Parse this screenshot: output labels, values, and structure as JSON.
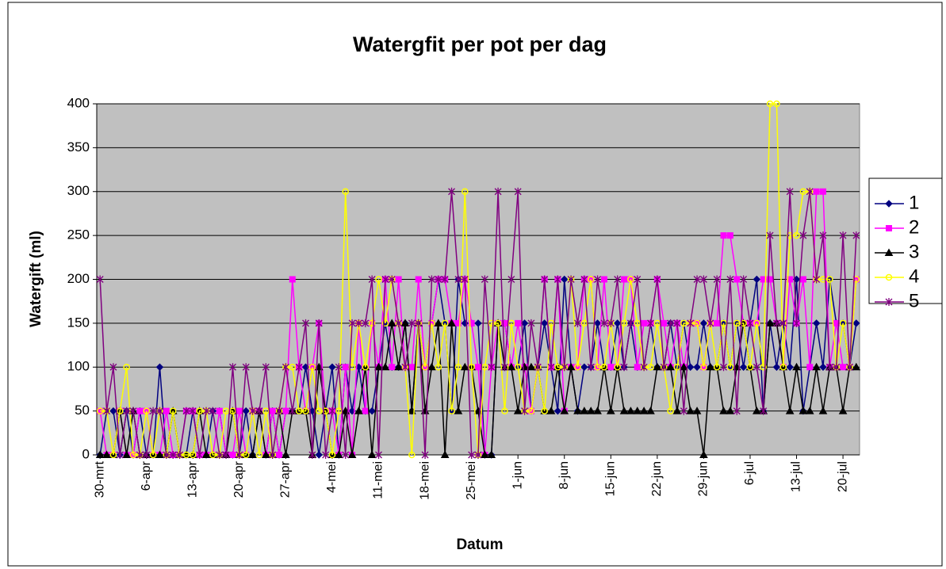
{
  "chart_data": {
    "type": "line",
    "title": "Watergfit per pot per dag",
    "x_label": "Datum",
    "y_label": "Watergift (ml)",
    "categories": [
      "30-mrt",
      null,
      null,
      null,
      null,
      null,
      null,
      "6-apr",
      null,
      null,
      null,
      null,
      null,
      null,
      "13-apr",
      null,
      null,
      null,
      null,
      null,
      null,
      "20-apr",
      null,
      null,
      null,
      null,
      null,
      null,
      "27-apr",
      null,
      null,
      null,
      null,
      null,
      null,
      "4-mei",
      null,
      null,
      null,
      null,
      null,
      null,
      "11-mei",
      null,
      null,
      null,
      null,
      null,
      null,
      "18-mei",
      null,
      null,
      null,
      null,
      null,
      null,
      "25-mei",
      null,
      null,
      null,
      null,
      null,
      null,
      "1-jun",
      null,
      null,
      null,
      null,
      null,
      null,
      "8-jun",
      null,
      null,
      null,
      null,
      null,
      null,
      "15-jun",
      null,
      null,
      null,
      null,
      null,
      null,
      "22-jun",
      null,
      null,
      null,
      null,
      null,
      null,
      "29-jun",
      null,
      null,
      null,
      null,
      null,
      null,
      "6-jul",
      null,
      null,
      null,
      null,
      null,
      null,
      "13-jul",
      null,
      null,
      null,
      null,
      null,
      null,
      "20-jul",
      null,
      null
    ],
    "ylim": [
      0,
      400
    ],
    "yticks": [
      0,
      50,
      100,
      150,
      200,
      250,
      300,
      350,
      400
    ],
    "grid": true,
    "legend": "right",
    "series": [
      {
        "name": "1",
        "color": "#000080",
        "marker": "diamond",
        "values": [
          0,
          50,
          50,
          0,
          50,
          0,
          50,
          0,
          0,
          100,
          0,
          50,
          0,
          0,
          50,
          0,
          0,
          50,
          50,
          0,
          0,
          0,
          50,
          0,
          50,
          0,
          50,
          0,
          50,
          50,
          50,
          100,
          50,
          0,
          50,
          100,
          0,
          100,
          50,
          100,
          50,
          50,
          100,
          150,
          100,
          100,
          150,
          50,
          150,
          100,
          150,
          200,
          150,
          50,
          200,
          150,
          150,
          150,
          0,
          0,
          150,
          150,
          100,
          100,
          150,
          50,
          100,
          150,
          100,
          50,
          200,
          100,
          50,
          100,
          100,
          150,
          100,
          100,
          150,
          100,
          150,
          100,
          100,
          150,
          100,
          100,
          150,
          100,
          150,
          100,
          100,
          150,
          100,
          100,
          150,
          100,
          150,
          100,
          150,
          200,
          50,
          150,
          100,
          150,
          100,
          200,
          50,
          100,
          150,
          100,
          200,
          150,
          150,
          100,
          150
        ]
      },
      {
        "name": "2",
        "color": "#ff00ff",
        "marker": "square",
        "values": [
          50,
          0,
          0,
          50,
          0,
          0,
          50,
          50,
          0,
          0,
          50,
          0,
          0,
          50,
          50,
          0,
          0,
          0,
          50,
          0,
          0,
          50,
          0,
          50,
          50,
          0,
          50,
          0,
          50,
          200,
          100,
          50,
          100,
          150,
          50,
          50,
          0,
          100,
          0,
          150,
          50,
          150,
          100,
          200,
          100,
          200,
          100,
          100,
          200,
          100,
          150,
          200,
          200,
          150,
          150,
          200,
          150,
          100,
          0,
          100,
          150,
          150,
          100,
          150,
          100,
          50,
          100,
          200,
          100,
          200,
          50,
          100,
          100,
          200,
          200,
          100,
          200,
          100,
          100,
          200,
          200,
          100,
          150,
          150,
          200,
          150,
          100,
          150,
          100,
          150,
          150,
          100,
          150,
          150,
          250,
          250,
          200,
          150,
          150,
          150,
          200,
          200,
          150,
          100,
          200,
          150,
          200,
          100,
          300,
          300,
          100,
          150,
          100,
          100,
          200
        ]
      },
      {
        "name": "3",
        "color": "#000000",
        "marker": "triangle",
        "values": [
          0,
          0,
          0,
          50,
          0,
          50,
          0,
          0,
          0,
          0,
          0,
          50,
          0,
          0,
          0,
          50,
          0,
          0,
          0,
          0,
          50,
          0,
          0,
          0,
          50,
          0,
          0,
          50,
          0,
          50,
          50,
          50,
          0,
          100,
          50,
          0,
          0,
          50,
          0,
          50,
          100,
          0,
          100,
          100,
          150,
          100,
          150,
          50,
          150,
          50,
          100,
          150,
          0,
          150,
          50,
          100,
          100,
          50,
          0,
          0,
          150,
          100,
          100,
          50,
          100,
          100,
          100,
          50,
          50,
          100,
          50,
          100,
          50,
          50,
          50,
          50,
          100,
          50,
          100,
          50,
          50,
          50,
          50,
          50,
          100,
          100,
          100,
          50,
          100,
          50,
          50,
          0,
          100,
          100,
          50,
          50,
          100,
          150,
          100,
          50,
          50,
          150,
          150,
          100,
          50,
          100,
          50,
          50,
          100,
          50,
          100,
          100,
          50,
          100,
          100
        ]
      },
      {
        "name": "4",
        "color": "#ffff00",
        "marker": "circle",
        "values": [
          50,
          50,
          0,
          50,
          100,
          0,
          0,
          50,
          0,
          50,
          0,
          50,
          0,
          0,
          0,
          50,
          50,
          0,
          0,
          50,
          50,
          0,
          0,
          50,
          0,
          50,
          0,
          50,
          100,
          100,
          50,
          50,
          100,
          50,
          50,
          0,
          50,
          300,
          100,
          150,
          100,
          150,
          200,
          150,
          200,
          150,
          100,
          0,
          150,
          100,
          150,
          100,
          150,
          50,
          100,
          300,
          100,
          0,
          100,
          150,
          150,
          50,
          150,
          100,
          50,
          50,
          100,
          50,
          150,
          100,
          100,
          200,
          100,
          150,
          200,
          100,
          100,
          150,
          100,
          150,
          200,
          150,
          100,
          100,
          150,
          100,
          50,
          100,
          150,
          150,
          150,
          100,
          150,
          100,
          150,
          100,
          150,
          150,
          100,
          150,
          100,
          400,
          400,
          100,
          250,
          250,
          300,
          300,
          200,
          200,
          200,
          100,
          150,
          100,
          200
        ]
      },
      {
        "name": "5",
        "color": "#800080",
        "marker": "star",
        "values": [
          200,
          50,
          100,
          0,
          50,
          50,
          0,
          0,
          50,
          50,
          0,
          0,
          0,
          50,
          50,
          0,
          50,
          50,
          0,
          0,
          100,
          0,
          100,
          50,
          50,
          100,
          0,
          50,
          100,
          50,
          100,
          150,
          0,
          150,
          0,
          50,
          100,
          0,
          150,
          150,
          150,
          200,
          0,
          200,
          200,
          150,
          100,
          150,
          150,
          0,
          200,
          200,
          200,
          300,
          200,
          200,
          0,
          0,
          200,
          100,
          300,
          100,
          200,
          300,
          50,
          150,
          100,
          200,
          100,
          200,
          100,
          200,
          150,
          200,
          100,
          200,
          150,
          150,
          200,
          100,
          150,
          200,
          100,
          150,
          200,
          100,
          150,
          150,
          50,
          150,
          200,
          200,
          150,
          200,
          100,
          200,
          50,
          200,
          150,
          100,
          50,
          250,
          150,
          150,
          300,
          150,
          250,
          300,
          200,
          250,
          100,
          100,
          250,
          100,
          250
        ]
      }
    ]
  }
}
